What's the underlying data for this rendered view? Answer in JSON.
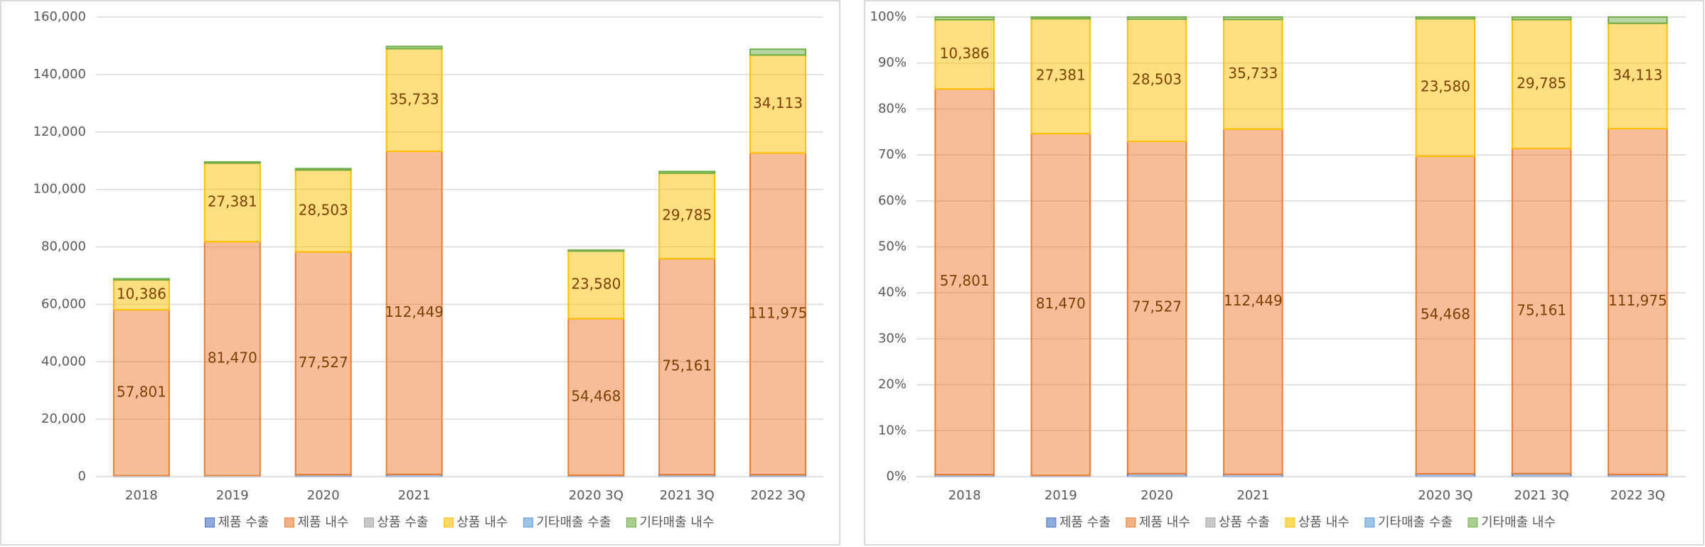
{
  "chart_data": [
    {
      "type": "bar",
      "stacked": "normal",
      "categories": [
        "2018",
        "2019",
        "2020",
        "2021",
        null,
        "2020 3Q",
        "2021 3Q",
        "2022 3Q"
      ],
      "ylim": [
        0,
        160000
      ],
      "yticks": [
        0,
        {
          "value": 20000,
          "label": "20,000"
        },
        {
          "value": 40000,
          "label": "40,000"
        },
        {
          "value": 60000,
          "label": "60,000"
        },
        {
          "value": 80000,
          "label": "80,000"
        },
        {
          "value": 100000,
          "label": "100,000"
        },
        {
          "value": 120000,
          "label": "120,000"
        },
        {
          "value": 140000,
          "label": "140,000"
        },
        {
          "value": 160000,
          "label": "160,000"
        }
      ],
      "grid": true,
      "legend": "bottom",
      "series": [
        {
          "name": "제품 수출",
          "color": "#4472c4",
          "values": [
            300,
            300,
            700,
            800,
            null,
            500,
            700,
            700
          ]
        },
        {
          "name": "제품 내수",
          "color": "#ed7d31",
          "values": [
            57801,
            81470,
            77527,
            112449,
            null,
            54468,
            75161,
            111975
          ],
          "value_labels": [
            "57,801",
            "81,470",
            "77,527",
            "112,449",
            null,
            "54,468",
            "75,161",
            "111,975"
          ]
        },
        {
          "name": "상품 수출",
          "color": "#a5a5a5",
          "values": [
            0,
            0,
            0,
            0,
            null,
            0,
            0,
            0
          ]
        },
        {
          "name": "상품 내수",
          "color": "#ffc000",
          "values": [
            10386,
            27381,
            28503,
            35733,
            null,
            23580,
            29785,
            34113
          ],
          "value_labels": [
            "10,386",
            "27,381",
            "28,503",
            "35,733",
            null,
            "23,580",
            "29,785",
            "34,113"
          ]
        },
        {
          "name": "기타매출 수출",
          "color": "#5b9bd5",
          "values": [
            0,
            0,
            0,
            0,
            null,
            0,
            0,
            0
          ]
        },
        {
          "name": "기타매출 내수",
          "color": "#70ad47",
          "values": [
            400,
            400,
            500,
            800,
            null,
            300,
            600,
            2000
          ]
        }
      ]
    },
    {
      "type": "bar",
      "stacked": "percent",
      "categories": [
        "2018",
        "2019",
        "2020",
        "2021",
        null,
        "2020 3Q",
        "2021 3Q",
        "2022 3Q"
      ],
      "ylim": [
        0,
        100
      ],
      "yticks": [
        {
          "value": 0,
          "label": "0%"
        },
        {
          "value": 10,
          "label": "10%"
        },
        {
          "value": 20,
          "label": "20%"
        },
        {
          "value": 30,
          "label": "30%"
        },
        {
          "value": 40,
          "label": "40%"
        },
        {
          "value": 50,
          "label": "50%"
        },
        {
          "value": 60,
          "label": "60%"
        },
        {
          "value": 70,
          "label": "70%"
        },
        {
          "value": 80,
          "label": "80%"
        },
        {
          "value": 90,
          "label": "90%"
        },
        {
          "value": 100,
          "label": "100%"
        }
      ],
      "grid": true,
      "legend": "bottom",
      "series": [
        {
          "name": "제품 수출",
          "color": "#4472c4",
          "values": [
            300,
            300,
            700,
            800,
            null,
            500,
            700,
            700
          ]
        },
        {
          "name": "제품 내수",
          "color": "#ed7d31",
          "values": [
            57801,
            81470,
            77527,
            112449,
            null,
            54468,
            75161,
            111975
          ],
          "value_labels": [
            "57,801",
            "81,470",
            "77,527",
            "112,449",
            null,
            "54,468",
            "75,161",
            "111,975"
          ]
        },
        {
          "name": "상품 수출",
          "color": "#a5a5a5",
          "values": [
            0,
            0,
            0,
            0,
            null,
            0,
            0,
            0
          ]
        },
        {
          "name": "상품 내수",
          "color": "#ffc000",
          "values": [
            10386,
            27381,
            28503,
            35733,
            null,
            23580,
            29785,
            34113
          ],
          "value_labels": [
            "10,386",
            "27,381",
            "28,503",
            "35,733",
            null,
            "23,580",
            "29,785",
            "34,113"
          ]
        },
        {
          "name": "기타매출 수출",
          "color": "#5b9bd5",
          "values": [
            0,
            0,
            0,
            0,
            null,
            0,
            0,
            0
          ]
        },
        {
          "name": "기타매출 내수",
          "color": "#70ad47",
          "values": [
            400,
            400,
            500,
            800,
            null,
            300,
            600,
            2000
          ]
        }
      ]
    }
  ]
}
